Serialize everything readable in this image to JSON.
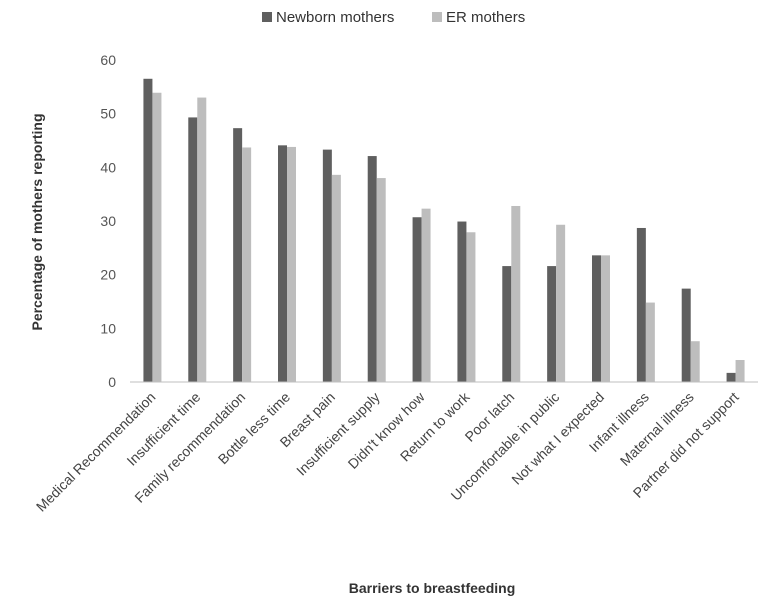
{
  "chart_data": {
    "type": "bar",
    "title": "",
    "xlabel": "Barriers to breastfeeding",
    "ylabel": "Percentage of mothers reporting",
    "ylim": [
      0,
      60
    ],
    "yticks": [
      0,
      10,
      20,
      30,
      40,
      50,
      60
    ],
    "grid": false,
    "legend_position": "top",
    "categories": [
      "Medical Recommendation",
      "Insufficient time",
      "Family recommendation",
      "Bottle less time",
      "Breast pain",
      "Insufficient supply",
      "Didn't know how",
      "Return to work",
      "Poor latch",
      "Uncomfortable in public",
      "Not what I expected",
      "Infant illness",
      "Maternal illness",
      "Partner did not support"
    ],
    "series": [
      {
        "name": "Newborn mothers",
        "color": "#5f5f5f",
        "values": [
          56.5,
          49.3,
          47.3,
          44.1,
          43.3,
          42.1,
          30.7,
          29.9,
          21.6,
          21.6,
          23.6,
          28.7,
          17.4,
          1.7
        ]
      },
      {
        "name": "ER mothers",
        "color": "#bdbdbd",
        "values": [
          53.9,
          53.0,
          43.7,
          43.8,
          38.6,
          38.0,
          32.3,
          27.9,
          32.8,
          29.3,
          23.6,
          14.8,
          7.6,
          4.1
        ]
      }
    ]
  }
}
